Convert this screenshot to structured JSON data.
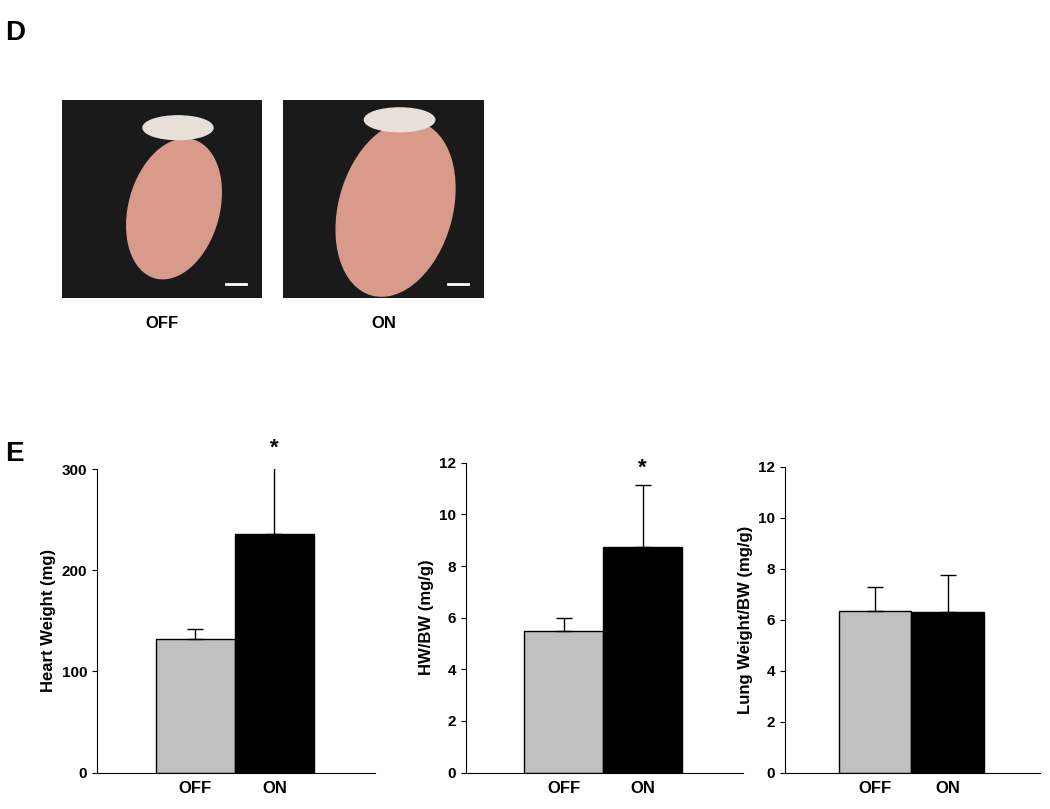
{
  "panels": {
    "top": "D",
    "bottom": "E"
  },
  "photos": {
    "labels": [
      "OFF",
      "ON"
    ]
  },
  "chart_data": [
    {
      "type": "bar",
      "categories": [
        "OFF",
        "ON"
      ],
      "values": [
        132,
        236
      ],
      "errors": [
        10,
        68
      ],
      "colors": [
        "#c0c0c0",
        "#000000"
      ],
      "ylabel": "Heart Weight (mg)",
      "ylim": [
        0,
        300
      ],
      "yticks": [
        0,
        100,
        200,
        300
      ],
      "significance": [
        null,
        "*"
      ]
    },
    {
      "type": "bar",
      "categories": [
        "OFF",
        "ON"
      ],
      "values": [
        5.5,
        8.75
      ],
      "errors": [
        0.5,
        2.4
      ],
      "colors": [
        "#c0c0c0",
        "#000000"
      ],
      "ylabel": "HW/BW (mg/g)",
      "ylim": [
        0,
        12
      ],
      "yticks": [
        0,
        2,
        4,
        6,
        8,
        10,
        12
      ],
      "significance": [
        null,
        "*"
      ]
    },
    {
      "type": "bar",
      "categories": [
        "OFF",
        "ON"
      ],
      "values": [
        6.35,
        6.3
      ],
      "errors": [
        0.95,
        1.45
      ],
      "colors": [
        "#c0c0c0",
        "#000000"
      ],
      "ylabel": "Lung Weight/BW (mg/g)",
      "ylim": [
        0,
        12
      ],
      "yticks": [
        0,
        2,
        4,
        6,
        8,
        10,
        12
      ]
    }
  ]
}
